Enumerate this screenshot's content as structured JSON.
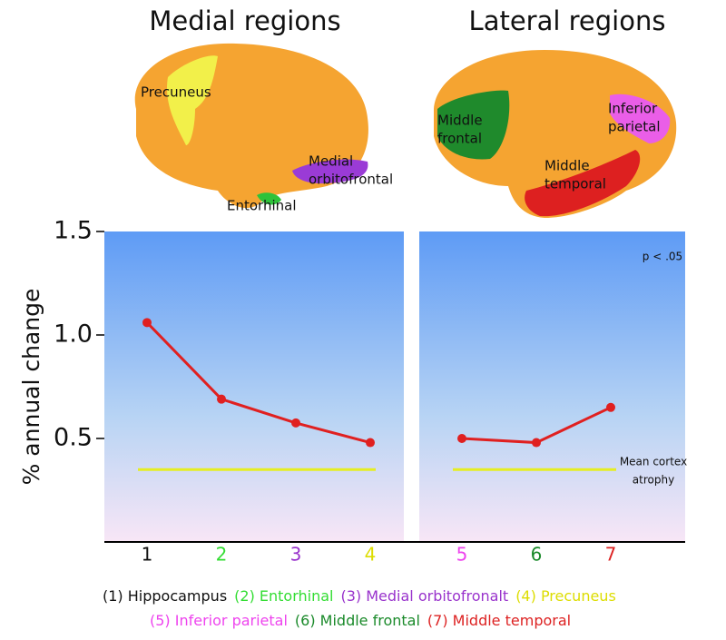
{
  "chart_data": [
    {
      "type": "line",
      "title": "Medial regions",
      "y_label": "% annual change",
      "categories": [
        "1",
        "2",
        "3",
        "4"
      ],
      "category_colors": [
        "#111111",
        "#33dd33",
        "#9933cc",
        "#dddd00"
      ],
      "series": [
        {
          "color": "#e02020",
          "values": [
            1.06,
            0.69,
            0.575,
            0.48
          ]
        }
      ],
      "reference_line": {
        "value": 0.35,
        "color": "#e6ee22"
      },
      "ylim": [
        0,
        1.5
      ],
      "yticks": [
        0.5,
        {
          "value": 1,
          "label": "1.0"
        },
        1.5
      ],
      "brain_labels": [
        {
          "lines": [
            "Precuneus"
          ]
        },
        {
          "lines": [
            "Medial",
            "orbitofrontal"
          ]
        },
        {
          "lines": [
            "Entorhinal"
          ]
        }
      ]
    },
    {
      "type": "line",
      "title": "Lateral regions",
      "categories": [
        "5",
        "6",
        "7"
      ],
      "category_colors": [
        "#ee44ee",
        "#1a8a2a",
        "#dd2222"
      ],
      "series": [
        {
          "color": "#e02020",
          "values": [
            0.5,
            0.48,
            0.65
          ]
        }
      ],
      "reference_line": {
        "value": 0.35,
        "color": "#e6ee22",
        "label": [
          "Mean cortex",
          "atrophy"
        ]
      },
      "annotation": "p < .05",
      "ylim": [
        0,
        1.5
      ],
      "brain_labels": [
        {
          "lines": [
            "Middle",
            "frontal"
          ]
        },
        {
          "lines": [
            "Inferior",
            "parietal"
          ]
        },
        {
          "lines": [
            "Middle",
            "temporal"
          ]
        }
      ]
    }
  ],
  "key": [
    [
      {
        "text": "(1) Hippocampus",
        "color": "#111111"
      },
      {
        "text": "(2) Entorhinal",
        "color": "#33dd33"
      },
      {
        "text": "(3) Medial orbitofronalt",
        "color": "#9933cc"
      },
      {
        "text": "(4) Precuneus",
        "color": "#dddd00"
      }
    ],
    [
      {
        "text": "(5) Inferior parietal",
        "color": "#ee44ee"
      },
      {
        "text": "(6) Middle frontal",
        "color": "#1a8a2a"
      },
      {
        "text": "(7) Middle temporal",
        "color": "#dd2222"
      }
    ]
  ]
}
